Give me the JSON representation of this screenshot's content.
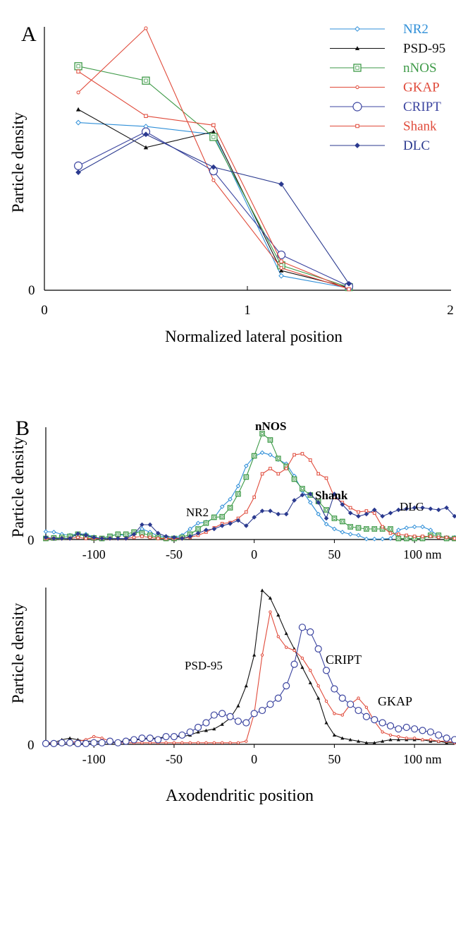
{
  "figure": {
    "xlabel_bottom": "Axodendritic position"
  },
  "colors": {
    "NR2": "#2f8fd8",
    "PSD-95": "#111111",
    "nNOS": "#3e9a48",
    "GKAP": "#e04a3a",
    "CRIPT": "#3c45a0",
    "Shank": "#e04a3a",
    "DLC": "#2b3a8f"
  },
  "chart_data": [
    {
      "panel": "A",
      "type": "line",
      "xlabel": "Normalized lateral position",
      "ylabel": "Particle density",
      "xlim": [
        0,
        2
      ],
      "ylim": [
        0,
        1
      ],
      "xticks": [
        "0",
        "1",
        "2"
      ],
      "yticks": [
        "0"
      ],
      "legend_position": "top-right",
      "x": [
        0.167,
        0.5,
        0.833,
        1.167,
        1.5
      ],
      "series": [
        {
          "name": "NR2",
          "marker": "diamond",
          "values": [
            0.64,
            0.625,
            0.595,
            0.055,
            0.008
          ]
        },
        {
          "name": "PSD-95",
          "marker": "triangle",
          "values": [
            0.69,
            0.545,
            0.605,
            0.075,
            0.01
          ]
        },
        {
          "name": "nNOS",
          "marker": "square-open",
          "values": [
            0.855,
            0.8,
            0.585,
            0.095,
            0.012
          ]
        },
        {
          "name": "GKAP",
          "marker": "circle-small",
          "values": [
            0.755,
            1.0,
            0.42,
            0.085,
            0.005
          ]
        },
        {
          "name": "CRIPT",
          "marker": "circle-open",
          "values": [
            0.475,
            0.605,
            0.455,
            0.135,
            0.015
          ]
        },
        {
          "name": "Shank",
          "marker": "square-small",
          "values": [
            0.835,
            0.665,
            0.63,
            0.11,
            0.004
          ]
        },
        {
          "name": "DLC",
          "marker": "diamond-filled",
          "values": [
            0.45,
            0.595,
            0.47,
            0.405,
            0.025
          ]
        }
      ]
    },
    {
      "panel": "B",
      "type": "line",
      "xlabel": "",
      "ylabel": "Particle density",
      "xlim": [
        -130,
        125
      ],
      "ylim": [
        0,
        1
      ],
      "xticks": [
        "-100",
        "-50",
        "0",
        "50",
        "100 nm"
      ],
      "yticks": [
        "0"
      ],
      "annotations": [
        "nNOS",
        "Shank",
        "NR2",
        "DLC"
      ],
      "series": [
        {
          "name": "NR2",
          "marker": "diamond",
          "x": [
            -130,
            -125,
            -120,
            -115,
            -110,
            -105,
            -100,
            -95,
            -90,
            -85,
            -80,
            -75,
            -70,
            -65,
            -60,
            -55,
            -50,
            -45,
            -40,
            -35,
            -30,
            -25,
            -20,
            -15,
            -10,
            -5,
            0,
            5,
            10,
            15,
            20,
            25,
            30,
            35,
            40,
            45,
            50,
            55,
            60,
            65,
            70,
            75,
            80,
            85,
            90,
            95,
            100,
            105,
            110,
            115,
            120,
            125
          ],
          "values": [
            0.075,
            0.07,
            0.05,
            0.04,
            0.055,
            0.05,
            0.025,
            0.01,
            0.035,
            0.05,
            0.035,
            0.05,
            0.1,
            0.07,
            0.035,
            0.025,
            0.02,
            0.04,
            0.1,
            0.155,
            0.165,
            0.205,
            0.31,
            0.38,
            0.505,
            0.695,
            0.785,
            0.82,
            0.8,
            0.755,
            0.715,
            0.6,
            0.46,
            0.35,
            0.24,
            0.145,
            0.1,
            0.07,
            0.05,
            0.04,
            0.005,
            0.005,
            0.005,
            0.01,
            0.09,
            0.11,
            0.12,
            0.12,
            0.09,
            0.03,
            0.02,
            0.02
          ]
        },
        {
          "name": "nNOS",
          "marker": "square-open",
          "x": [
            -130,
            -125,
            -120,
            -115,
            -110,
            -105,
            -100,
            -95,
            -90,
            -85,
            -80,
            -75,
            -70,
            -65,
            -60,
            -55,
            -50,
            -45,
            -40,
            -35,
            -30,
            -25,
            -20,
            -15,
            -10,
            -5,
            0,
            5,
            10,
            15,
            20,
            25,
            30,
            35,
            40,
            45,
            50,
            55,
            60,
            65,
            70,
            75,
            80,
            85,
            90,
            95,
            100,
            105,
            110,
            115,
            120,
            125
          ],
          "values": [
            0.01,
            0.015,
            0.02,
            0.03,
            0.05,
            0.03,
            0.015,
            0.01,
            0.03,
            0.05,
            0.05,
            0.07,
            0.06,
            0.04,
            0.02,
            0.01,
            0.01,
            0.02,
            0.05,
            0.1,
            0.155,
            0.21,
            0.215,
            0.3,
            0.43,
            0.59,
            0.79,
            1.0,
            0.94,
            0.765,
            0.69,
            0.57,
            0.48,
            0.42,
            0.36,
            0.28,
            0.2,
            0.17,
            0.12,
            0.11,
            0.1,
            0.1,
            0.1,
            0.1,
            0.01,
            0.01,
            0.01,
            0.01,
            0.04,
            0.04,
            0.01,
            0.01
          ]
        },
        {
          "name": "Shank",
          "marker": "square-small",
          "x": [
            -130,
            -125,
            -120,
            -115,
            -110,
            -105,
            -100,
            -95,
            -90,
            -85,
            -80,
            -75,
            -70,
            -65,
            -60,
            -55,
            -50,
            -45,
            -40,
            -35,
            -30,
            -25,
            -20,
            -15,
            -10,
            -5,
            0,
            5,
            10,
            15,
            20,
            25,
            30,
            35,
            40,
            45,
            50,
            55,
            60,
            65,
            70,
            75,
            80,
            85,
            90,
            95,
            100,
            105,
            110,
            115,
            120,
            125
          ],
          "values": [
            0.01,
            0.01,
            0.01,
            0.01,
            0.02,
            0.01,
            0.01,
            0.01,
            0.01,
            0.01,
            0.01,
            0.02,
            0.03,
            0.02,
            0.01,
            0.01,
            0.01,
            0.01,
            0.02,
            0.04,
            0.07,
            0.11,
            0.15,
            0.16,
            0.2,
            0.26,
            0.4,
            0.62,
            0.67,
            0.62,
            0.67,
            0.8,
            0.81,
            0.75,
            0.62,
            0.58,
            0.4,
            0.35,
            0.3,
            0.26,
            0.27,
            0.25,
            0.12,
            0.06,
            0.05,
            0.04,
            0.03,
            0.03,
            0.03,
            0.02,
            0.02,
            0.01
          ]
        },
        {
          "name": "DLC",
          "marker": "diamond-filled",
          "x": [
            -130,
            -125,
            -120,
            -115,
            -110,
            -105,
            -100,
            -95,
            -90,
            -85,
            -80,
            -75,
            -70,
            -65,
            -60,
            -55,
            -50,
            -45,
            -40,
            -35,
            -30,
            -25,
            -20,
            -15,
            -10,
            -5,
            0,
            5,
            10,
            15,
            20,
            25,
            30,
            35,
            40,
            45,
            50,
            55,
            60,
            65,
            70,
            75,
            80,
            85,
            90,
            95,
            100,
            105,
            110,
            115,
            120,
            125
          ],
          "values": [
            0.02,
            0.01,
            0.01,
            0.01,
            0.055,
            0.04,
            0.02,
            0.01,
            0.01,
            0.01,
            0.01,
            0.05,
            0.14,
            0.14,
            0.06,
            0.03,
            0.02,
            0.01,
            0.03,
            0.06,
            0.09,
            0.1,
            0.13,
            0.15,
            0.18,
            0.13,
            0.21,
            0.27,
            0.27,
            0.24,
            0.24,
            0.37,
            0.42,
            0.43,
            0.35,
            0.2,
            0.43,
            0.33,
            0.25,
            0.22,
            0.24,
            0.28,
            0.22,
            0.25,
            0.28,
            0.29,
            0.3,
            0.3,
            0.29,
            0.28,
            0.3,
            0.22
          ]
        }
      ]
    },
    {
      "panel": "B-lower",
      "type": "line",
      "xlabel": "Axodendritic position",
      "ylabel": "Particle density",
      "xlim": [
        -130,
        125
      ],
      "ylim": [
        0,
        1
      ],
      "xticks": [
        "-100",
        "-50",
        "0",
        "50",
        "100 nm"
      ],
      "yticks": [
        "0"
      ],
      "annotations": [
        "PSD-95",
        "CRIPT",
        "GKAP"
      ],
      "series": [
        {
          "name": "PSD-95",
          "marker": "triangle",
          "x": [
            -130,
            -125,
            -120,
            -115,
            -110,
            -105,
            -100,
            -95,
            -90,
            -85,
            -80,
            -75,
            -70,
            -65,
            -60,
            -55,
            -50,
            -45,
            -40,
            -35,
            -30,
            -25,
            -20,
            -15,
            -10,
            -5,
            0,
            5,
            10,
            15,
            20,
            25,
            30,
            35,
            40,
            45,
            50,
            55,
            60,
            65,
            70,
            75,
            80,
            85,
            90,
            95,
            100,
            105,
            110,
            115,
            120,
            125
          ],
          "values": [
            0.01,
            0.01,
            0.03,
            0.04,
            0.03,
            0.02,
            0.02,
            0.02,
            0.01,
            0.01,
            0.03,
            0.03,
            0.03,
            0.04,
            0.04,
            0.05,
            0.05,
            0.05,
            0.06,
            0.08,
            0.09,
            0.1,
            0.13,
            0.17,
            0.25,
            0.38,
            0.58,
            1.0,
            0.95,
            0.84,
            0.72,
            0.62,
            0.5,
            0.4,
            0.3,
            0.14,
            0.06,
            0.04,
            0.03,
            0.02,
            0.01,
            0.01,
            0.02,
            0.03,
            0.03,
            0.03,
            0.03,
            0.03,
            0.02,
            0.02,
            0.01,
            0.01
          ]
        },
        {
          "name": "GKAP",
          "marker": "circle-small",
          "x": [
            -130,
            -125,
            -120,
            -115,
            -110,
            -105,
            -100,
            -95,
            -90,
            -85,
            -80,
            -75,
            -70,
            -65,
            -60,
            -55,
            -50,
            -45,
            -40,
            -35,
            -30,
            -25,
            -20,
            -15,
            -10,
            -5,
            0,
            5,
            10,
            15,
            20,
            25,
            30,
            35,
            40,
            45,
            50,
            55,
            60,
            65,
            70,
            75,
            80,
            85,
            90,
            95,
            100,
            105,
            110,
            115,
            120,
            125
          ],
          "values": [
            0.01,
            0.01,
            0.01,
            0.01,
            0.02,
            0.03,
            0.05,
            0.04,
            0.02,
            0.01,
            0.01,
            0.01,
            0.01,
            0.01,
            0.01,
            0.01,
            0.01,
            0.01,
            0.01,
            0.01,
            0.01,
            0.01,
            0.01,
            0.01,
            0.01,
            0.02,
            0.2,
            0.58,
            0.86,
            0.7,
            0.63,
            0.61,
            0.56,
            0.48,
            0.38,
            0.28,
            0.2,
            0.19,
            0.26,
            0.3,
            0.24,
            0.15,
            0.08,
            0.06,
            0.05,
            0.04,
            0.04,
            0.03,
            0.03,
            0.02,
            0.02,
            0.01
          ]
        },
        {
          "name": "CRIPT",
          "marker": "circle-open",
          "x": [
            -130,
            -125,
            -120,
            -115,
            -110,
            -105,
            -100,
            -95,
            -90,
            -85,
            -80,
            -75,
            -70,
            -65,
            -60,
            -55,
            -50,
            -45,
            -40,
            -35,
            -30,
            -25,
            -20,
            -15,
            -10,
            -5,
            0,
            5,
            10,
            15,
            20,
            25,
            30,
            35,
            40,
            45,
            50,
            55,
            60,
            65,
            70,
            75,
            80,
            85,
            90,
            95,
            100,
            105,
            110,
            115,
            120,
            125
          ],
          "values": [
            0.005,
            0.005,
            0.01,
            0.01,
            0.005,
            0.005,
            0.01,
            0.01,
            0.02,
            0.01,
            0.02,
            0.03,
            0.04,
            0.04,
            0.03,
            0.05,
            0.05,
            0.06,
            0.08,
            0.11,
            0.14,
            0.19,
            0.2,
            0.18,
            0.15,
            0.14,
            0.2,
            0.22,
            0.26,
            0.3,
            0.38,
            0.52,
            0.76,
            0.73,
            0.62,
            0.48,
            0.36,
            0.3,
            0.26,
            0.22,
            0.18,
            0.16,
            0.14,
            0.12,
            0.1,
            0.11,
            0.1,
            0.09,
            0.08,
            0.06,
            0.04,
            0.03
          ]
        }
      ]
    }
  ]
}
